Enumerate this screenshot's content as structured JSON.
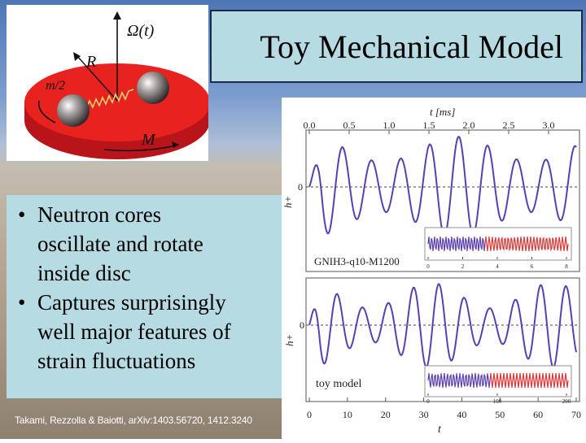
{
  "title": "Toy Mechanical Model",
  "diagram": {
    "omega_label": "Ω(t)",
    "radius_label": "R",
    "mass_label": "m/2",
    "disc_label": "M"
  },
  "bullets": [
    {
      "line1": "Neutron cores",
      "line2": "oscillate and rotate",
      "line3": "inside disc"
    },
    {
      "line1": "Captures surprisingly",
      "line2": "well major features of",
      "line3": "strain fluctuations"
    }
  ],
  "citation": "Takami, Rezzolla & Baiotti, arXiv:1403.56720, 1412.3240",
  "chart_data": [
    {
      "type": "line",
      "panel": "top",
      "title": "",
      "xlabel": "t [ms]",
      "x_ticks": [
        "0.0",
        "0.5",
        "1.0",
        "1.5",
        "2.0",
        "2.5",
        "3.0"
      ],
      "ylabel": "h+",
      "y_ticks": [
        "0"
      ],
      "legend": "GNIH3-q10-M1200",
      "inset_x_ticks": [
        "0",
        "2",
        "4",
        "6",
        "8"
      ]
    },
    {
      "type": "line",
      "panel": "bottom",
      "title": "",
      "xlabel": "t",
      "x_ticks": [
        "0",
        "10",
        "20",
        "30",
        "40",
        "50",
        "60",
        "70"
      ],
      "ylabel": "h+",
      "y_ticks": [
        "0"
      ],
      "legend": "toy model",
      "inset_x_ticks": [
        "0",
        "100",
        "200"
      ]
    }
  ],
  "colors": {
    "title_box": "#b7dbe2",
    "series": "#5b3fb0",
    "inset_red": "#d63a3a",
    "disc_red": "#e8221f"
  }
}
